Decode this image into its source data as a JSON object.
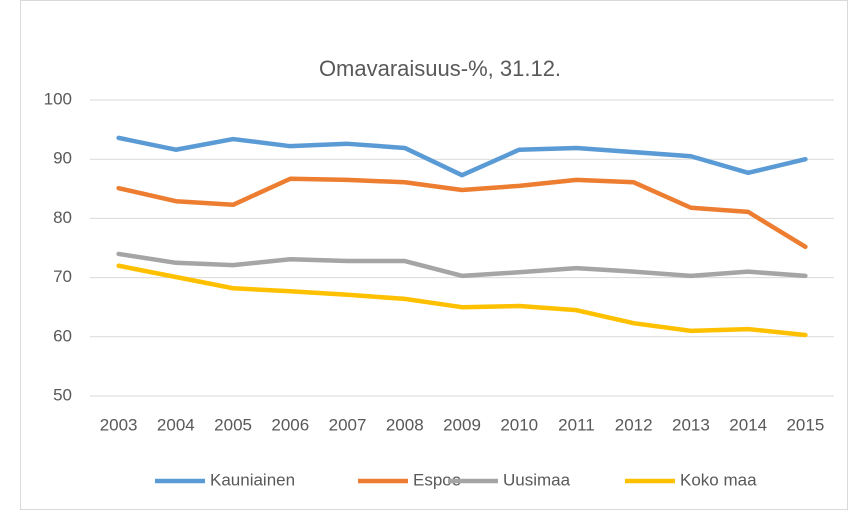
{
  "chart_data": {
    "type": "line",
    "title": "Omavaraisuus-%, 31.12.",
    "categories": [
      "2003",
      "2004",
      "2005",
      "2006",
      "2007",
      "2008",
      "2009",
      "2010",
      "2011",
      "2012",
      "2013",
      "2014",
      "2015"
    ],
    "series": [
      {
        "name": "Kauniainen",
        "color": "#5b9bd5",
        "values": [
          93.6,
          91.6,
          93.4,
          92.2,
          92.6,
          91.9,
          87.3,
          91.6,
          91.9,
          91.2,
          90.5,
          87.7,
          90.0
        ]
      },
      {
        "name": "Espoo",
        "color": "#ed7d31",
        "values": [
          85.1,
          82.9,
          82.3,
          86.7,
          86.5,
          86.1,
          84.8,
          85.5,
          86.5,
          86.1,
          81.8,
          81.1,
          75.2
        ]
      },
      {
        "name": "Uusimaa",
        "color": "#a5a5a5",
        "values": [
          74.0,
          72.5,
          72.1,
          73.1,
          72.8,
          72.8,
          70.3,
          70.9,
          71.6,
          71.0,
          70.3,
          71.0,
          70.3
        ]
      },
      {
        "name": "Koko maa",
        "color": "#ffc000",
        "values": [
          72.0,
          70.1,
          68.2,
          67.7,
          67.1,
          66.4,
          65.0,
          65.2,
          64.5,
          62.3,
          61.0,
          61.3,
          60.3
        ]
      }
    ],
    "ylim": [
      50,
      100
    ],
    "yticks": [
      50,
      60,
      70,
      80,
      90,
      100
    ],
    "grid": true,
    "legend": "bottom"
  }
}
